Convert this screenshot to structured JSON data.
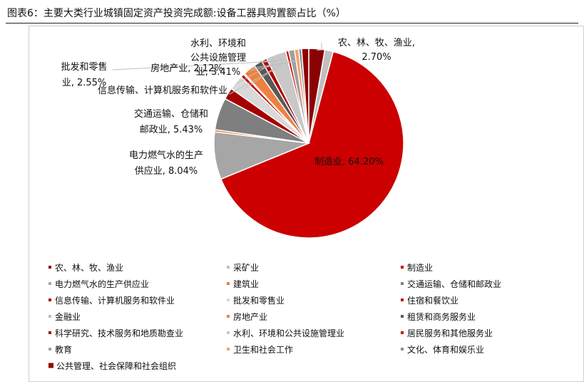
{
  "header": {
    "title": "图表6：主要大类行业城镇固定资产投资完成额:设备工器具购置额占比（%）"
  },
  "chart_data": {
    "type": "pie",
    "title": "图表6：主要大类行业城镇固定资产投资完成额:设备工器具购置额占比（%）",
    "legend_position": "bottom",
    "slices": [
      {
        "name": "农、林、牧、渔业",
        "value": 2.7,
        "color": "#8b0000"
      },
      {
        "name": "采矿业",
        "value": 1.42,
        "color": "#c0c0c0"
      },
      {
        "name": "制造业",
        "value": 64.2,
        "color": "#cc0000"
      },
      {
        "name": "电力燃气水的生产供应业",
        "value": 8.04,
        "color": "#a6a6a6"
      },
      {
        "name": "建筑业",
        "value": 0.38,
        "color": "#ed7d31"
      },
      {
        "name": "交通运输、仓储和邮政业",
        "value": 5.43,
        "color": "#7f7f7f"
      },
      {
        "name": "信息传输、计算机服务和软件业",
        "value": 1.98,
        "color": "#a50000"
      },
      {
        "name": "批发和零售业",
        "value": 2.55,
        "color": "#d9d9d9"
      },
      {
        "name": "住宿和餐饮业",
        "value": 0.6,
        "color": "#c00000"
      },
      {
        "name": "金融业",
        "value": 0.2,
        "color": "#bfbfbf"
      },
      {
        "name": "房地产业",
        "value": 2.12,
        "color": "#f08040"
      },
      {
        "name": "租赁和商务服务业",
        "value": 1.44,
        "color": "#595959"
      },
      {
        "name": "科学研究、技术服务和地质勘查业",
        "value": 0.92,
        "color": "#b00000"
      },
      {
        "name": "水利、环境和公共设施管理业",
        "value": 3.41,
        "color": "#c8c8c8"
      },
      {
        "name": "居民服务和其他服务业",
        "value": 0.48,
        "color": "#d40000"
      },
      {
        "name": "教育",
        "value": 1.0,
        "color": "#a0a0a0"
      },
      {
        "name": "卫生和社会工作",
        "value": 0.7,
        "color": "#f4a070"
      },
      {
        "name": "文化、体育和娱乐业",
        "value": 0.5,
        "color": "#8c8c8c"
      },
      {
        "name": "公共管理、社会保障和社会组织",
        "value": 1.2,
        "color": "#900000"
      }
    ],
    "labels": [
      {
        "text": [
          "农、林、牧、渔业,",
          "2.70%"
        ]
      },
      {
        "text": [
          "制造业, 64.20%"
        ]
      },
      {
        "text": [
          "电力燃气水的生产",
          "供应业, 8.04%"
        ]
      },
      {
        "text": [
          "交通运输、仓储和",
          "邮政业, 5.43%"
        ]
      },
      {
        "text": [
          "信息传输、计算机服务和软件业"
        ]
      },
      {
        "text": [
          "批发和零售",
          "业, 2.55%"
        ]
      },
      {
        "text": [
          "房地产业, 2.12%"
        ]
      },
      {
        "text": [
          "水利、环境和",
          "公共设施管理",
          "业, 3.41%"
        ]
      }
    ]
  }
}
